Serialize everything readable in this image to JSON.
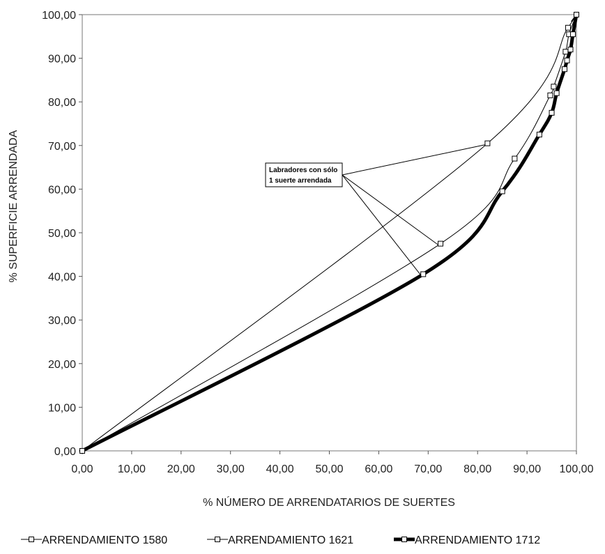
{
  "chart_data": {
    "type": "line",
    "title": "",
    "xlabel": "% NÚMERO DE ARRENDATARIOS DE SUERTES",
    "ylabel": "% SUPERFICIE ARRENDADA",
    "xlim": [
      0,
      100
    ],
    "ylim": [
      0,
      100
    ],
    "x_ticks": [
      "0,00",
      "10,00",
      "20,00",
      "30,00",
      "40,00",
      "50,00",
      "60,00",
      "70,00",
      "80,00",
      "90,00",
      "100,00"
    ],
    "y_ticks": [
      "0,00",
      "10,00",
      "20,00",
      "30,00",
      "40,00",
      "50,00",
      "60,00",
      "70,00",
      "80,00",
      "90,00",
      "100,00"
    ],
    "grid": false,
    "legend_position": "bottom",
    "annotation": {
      "lines": [
        "Labradores con sólo",
        "1 suerte arrendada"
      ],
      "targets": [
        [
          82.0,
          70.5
        ],
        [
          72.5,
          47.5
        ],
        [
          69.0,
          40.5
        ]
      ]
    },
    "series": [
      {
        "name": "ARRENDAMIENTO 1580",
        "line_width": 1,
        "points": [
          [
            0,
            0
          ],
          [
            82.0,
            70.5
          ],
          [
            98.3,
            97.0
          ],
          [
            99.0,
            98.5
          ],
          [
            100,
            100
          ]
        ],
        "markers": [
          [
            0,
            0
          ],
          [
            82.0,
            70.5
          ],
          [
            98.3,
            97.0
          ],
          [
            100,
            100
          ]
        ]
      },
      {
        "name": "ARRENDAMIENTO 1621",
        "line_width": 1,
        "points": [
          [
            0,
            0
          ],
          [
            72.5,
            47.5
          ],
          [
            87.5,
            67.0
          ],
          [
            94.7,
            81.5
          ],
          [
            95.4,
            83.5
          ],
          [
            97.8,
            91.5
          ],
          [
            98.5,
            95.5
          ],
          [
            100,
            100
          ]
        ],
        "markers": [
          [
            0,
            0
          ],
          [
            72.5,
            47.5
          ],
          [
            87.5,
            67.0
          ],
          [
            94.7,
            81.5
          ],
          [
            95.4,
            83.5
          ],
          [
            97.8,
            91.5
          ],
          [
            98.5,
            95.5
          ],
          [
            100,
            100
          ]
        ]
      },
      {
        "name": "ARRENDAMIENTO 1712",
        "line_width": 5,
        "points": [
          [
            0,
            0
          ],
          [
            69.0,
            40.5
          ],
          [
            85.0,
            59.5
          ],
          [
            92.5,
            72.5
          ],
          [
            95.0,
            77.5
          ],
          [
            96.0,
            82.0
          ],
          [
            97.6,
            87.5
          ],
          [
            98.1,
            89.5
          ],
          [
            98.8,
            92.0
          ],
          [
            99.3,
            95.5
          ],
          [
            100,
            100
          ]
        ],
        "markers": [
          [
            0,
            0
          ],
          [
            69.0,
            40.5
          ],
          [
            85.0,
            59.5
          ],
          [
            92.5,
            72.5
          ],
          [
            95.0,
            77.5
          ],
          [
            96.0,
            82.0
          ],
          [
            97.6,
            87.5
          ],
          [
            98.1,
            89.5
          ],
          [
            98.8,
            92.0
          ],
          [
            99.3,
            95.5
          ],
          [
            100,
            100
          ]
        ]
      }
    ]
  }
}
